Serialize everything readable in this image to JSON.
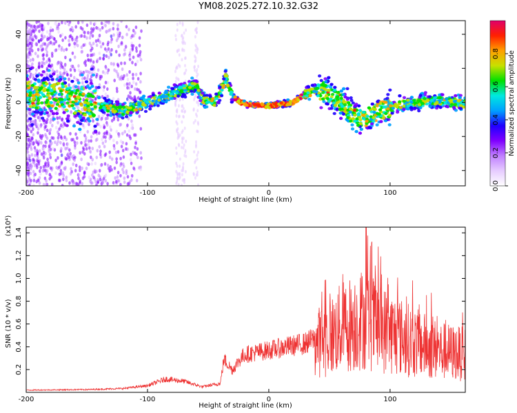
{
  "figure_title": "YM08.2025.272.10.32.G32",
  "colors": {
    "snr_line": "#ee3333",
    "axis": "#000000",
    "colormap": [
      "#ffffff",
      "#e6ccff",
      "#c080ff",
      "#8000ff",
      "#2000ff",
      "#00a0ff",
      "#00e8e0",
      "#00e000",
      "#c8e000",
      "#ffa000",
      "#ff2000",
      "#e0006a"
    ]
  },
  "chart_data": [
    {
      "type": "heatmap",
      "title": "",
      "xlabel": "Height of straight line (km)",
      "ylabel": "Frequency (Hz)",
      "xlim": [
        -200,
        162
      ],
      "ylim": [
        -49,
        48
      ],
      "x_ticks": [
        -200,
        -100,
        0,
        100
      ],
      "y_ticks": [
        -40,
        -20,
        0,
        20,
        40
      ],
      "colorbar": {
        "label": "Normalized spectral amplitude",
        "range": [
          0,
          1
        ],
        "ticks": [
          "0.0",
          "0.2",
          "0.4",
          "0.6",
          "0.8"
        ]
      },
      "ridge": {
        "description_points_km_hz": [
          [
            -200,
            5
          ],
          [
            -170,
            3
          ],
          [
            -150,
            0
          ],
          [
            -120,
            -5
          ],
          [
            -100,
            0
          ],
          [
            -80,
            5
          ],
          [
            -65,
            9
          ],
          [
            -60,
            10
          ],
          [
            -55,
            2
          ],
          [
            -45,
            0
          ],
          [
            -40,
            6
          ],
          [
            -35,
            15
          ],
          [
            -30,
            3
          ],
          [
            -20,
            -1
          ],
          [
            0,
            -2
          ],
          [
            20,
            0
          ],
          [
            30,
            5
          ],
          [
            40,
            8
          ],
          [
            50,
            5
          ],
          [
            60,
            0
          ],
          [
            70,
            -8
          ],
          [
            80,
            -9
          ],
          [
            90,
            -5
          ],
          [
            100,
            -3
          ],
          [
            120,
            0
          ],
          [
            140,
            1
          ],
          [
            162,
            -1
          ]
        ]
      }
    },
    {
      "type": "line",
      "title": "",
      "xlabel": "Height of straight line (km)",
      "ylabel": "SNR (10 * v/v)",
      "y_multiplier": "(x10⁴)",
      "xlim": [
        -200,
        162
      ],
      "ylim": [
        0,
        1.45
      ],
      "x_ticks": [
        -200,
        -100,
        0,
        100
      ],
      "y_ticks": [
        "0.2",
        "0.4",
        "0.6",
        "0.8",
        "1.0",
        "1.2",
        "1.4"
      ],
      "series": [
        {
          "name": "SNR",
          "envelope_km": [
            [
              -200,
              0.02
            ],
            [
              -150,
              0.025
            ],
            [
              -120,
              0.035
            ],
            [
              -100,
              0.06
            ],
            [
              -85,
              0.12
            ],
            [
              -70,
              0.1
            ],
            [
              -55,
              0.05
            ],
            [
              -40,
              0.08
            ],
            [
              -37,
              0.3
            ],
            [
              -30,
              0.2
            ],
            [
              -25,
              0.28
            ],
            [
              -20,
              0.34
            ],
            [
              -10,
              0.36
            ],
            [
              0,
              0.38
            ],
            [
              10,
              0.4
            ],
            [
              20,
              0.42
            ],
            [
              30,
              0.44
            ],
            [
              37,
              0.48
            ],
            [
              40,
              0.5
            ],
            [
              50,
              0.55
            ],
            [
              60,
              0.65
            ],
            [
              70,
              0.7
            ],
            [
              80,
              0.75
            ],
            [
              90,
              0.65
            ],
            [
              100,
              0.6
            ],
            [
              110,
              0.55
            ],
            [
              120,
              0.5
            ],
            [
              140,
              0.42
            ],
            [
              162,
              0.38
            ]
          ],
          "peak": {
            "x": 80,
            "y": 1.45
          }
        }
      ]
    }
  ]
}
